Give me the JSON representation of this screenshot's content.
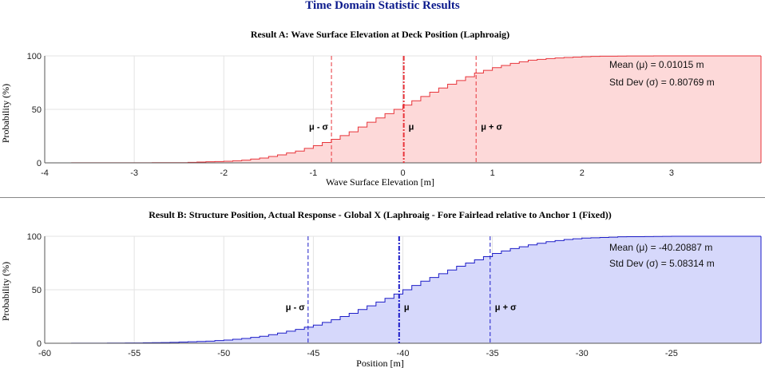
{
  "title": "Time Domain Statistic Results",
  "chart_data": [
    {
      "type": "area",
      "title": "Result A: Wave Surface Elevation at Deck Position (Laphroaig)",
      "xlabel": "Wave Surface Elevation [m]",
      "ylabel": "Probability (%)",
      "xlim": [
        -4,
        4
      ],
      "ylim": [
        0,
        100
      ],
      "xticks": [
        "-4",
        "-3",
        "-2",
        "-1",
        "0",
        "1",
        "2",
        "3"
      ],
      "yticks": [
        "0",
        "50",
        "100"
      ],
      "grid": true,
      "mean": 0.01015,
      "std": 0.80769,
      "mean_text": "Mean (μ) = 0.01015 m",
      "std_text": "Std Dev (σ) = 0.80769 m",
      "marker_labels": {
        "minus": "μ - σ",
        "mean": "μ",
        "plus": "μ + σ"
      },
      "color": "#e8343a",
      "fill": "#fdd9d9",
      "x": [
        -4,
        -3.5,
        -3,
        -2.5,
        -2.2,
        -2.0,
        -1.8,
        -1.6,
        -1.4,
        -1.2,
        -1.0,
        -0.8,
        -0.6,
        -0.4,
        -0.2,
        0.0,
        0.2,
        0.4,
        0.6,
        0.8,
        1.0,
        1.2,
        1.4,
        1.6,
        1.8,
        2.0,
        2.2,
        2.5,
        3.0,
        3.5,
        4.0
      ],
      "y": [
        0,
        0.1,
        0.1,
        0.2,
        1,
        1.5,
        2.5,
        4.5,
        7.5,
        11,
        16,
        22,
        29,
        38,
        46,
        54,
        62,
        70,
        77,
        84,
        89,
        93,
        96,
        97.5,
        98.5,
        99.3,
        99.7,
        99.9,
        100,
        100,
        100
      ]
    },
    {
      "type": "area",
      "title": "Result B: Structure Position, Actual Response - Global X (Laphroaig - Fore Fairlead relative to Anchor 1 (Fixed))",
      "xlabel": "Position [m]",
      "ylabel": "Probability (%)",
      "xlim": [
        -60,
        -20
      ],
      "ylim": [
        0,
        100
      ],
      "xticks": [
        "-60",
        "-55",
        "-50",
        "-45",
        "-40",
        "-35",
        "-30",
        "-25"
      ],
      "yticks": [
        "0",
        "50",
        "100"
      ],
      "grid": true,
      "mean": -40.20887,
      "std": 5.08314,
      "mean_text": "Mean (μ) = -40.20887 m",
      "std_text": "Std Dev (σ) = 5.08314 m",
      "marker_labels": {
        "minus": "μ - σ",
        "mean": "μ",
        "plus": "μ + σ"
      },
      "color": "#1c1cc8",
      "fill": "#d6d8fb",
      "x": [
        -60,
        -57,
        -55,
        -53,
        -51,
        -50,
        -49,
        -48,
        -47,
        -46,
        -45,
        -44,
        -43,
        -42,
        -41,
        -40,
        -39,
        -38,
        -37,
        -36,
        -35,
        -34,
        -33,
        -32,
        -31,
        -30,
        -28,
        -25,
        -20
      ],
      "y": [
        0,
        0.1,
        0.3,
        0.8,
        2,
        3,
        4.5,
        6.5,
        9.5,
        13,
        17,
        22,
        28,
        35,
        42,
        50,
        58,
        65,
        72,
        78,
        84,
        88.5,
        92,
        95,
        97,
        98.3,
        99.5,
        100,
        100
      ]
    }
  ]
}
